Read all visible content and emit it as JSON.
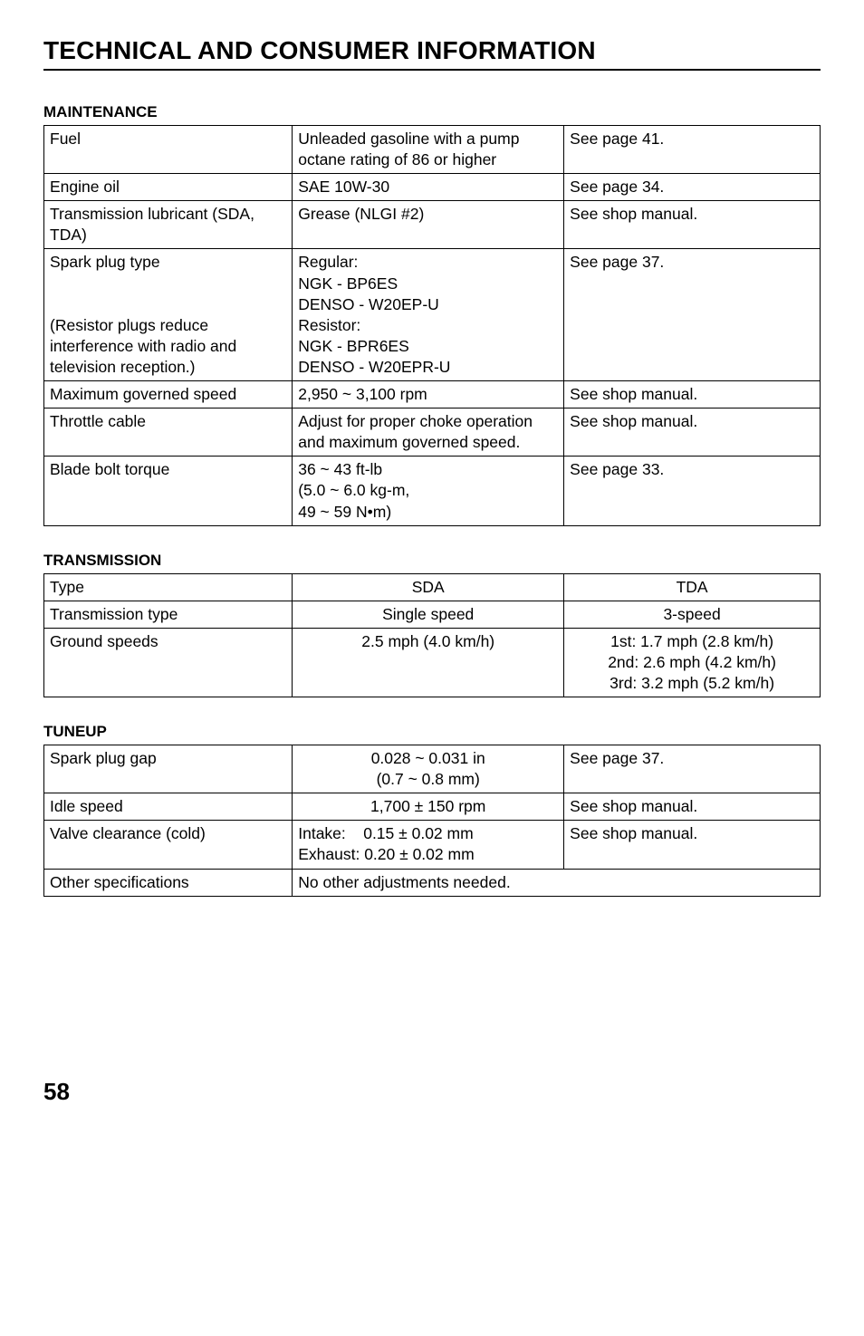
{
  "page": {
    "title": "TECHNICAL AND CONSUMER INFORMATION",
    "number": "58"
  },
  "maintenance": {
    "heading": "MAINTENANCE",
    "rows": [
      {
        "label": "Fuel",
        "spec": "Unleaded gasoline with a pump octane rating of 86 or higher",
        "ref": "See page 41."
      },
      {
        "label": "Engine oil",
        "spec": "SAE 10W-30",
        "ref": "See page 34."
      },
      {
        "label": "Transmission lubricant (SDA, TDA)",
        "spec": "Grease (NLGI #2)",
        "ref": "See shop manual."
      },
      {
        "label": "Spark plug type\n\n(Resistor plugs reduce interference with radio and television reception.)",
        "spec": "Regular:\nNGK - BP6ES\nDENSO - W20EP-U\nResistor:\nNGK - BPR6ES\nDENSO - W20EPR-U",
        "ref": "See page 37."
      },
      {
        "label": "Maximum governed speed",
        "spec": "2,950 ~ 3,100 rpm",
        "ref": "See shop manual."
      },
      {
        "label": "Throttle cable",
        "spec": "Adjust for proper choke operation and maximum governed speed.",
        "ref": "See shop manual."
      },
      {
        "label": "Blade bolt torque",
        "spec": "36 ~ 43 ft-lb\n(5.0 ~ 6.0 kg-m,\n49 ~ 59 N•m)",
        "ref": "See page 33."
      }
    ]
  },
  "transmission": {
    "heading": "TRANSMISSION",
    "rows": [
      {
        "label": "Type",
        "c2": "SDA",
        "c3": "TDA"
      },
      {
        "label": "Transmission type",
        "c2": "Single speed",
        "c3": "3-speed"
      },
      {
        "label": "Ground speeds",
        "c2": "2.5 mph (4.0 km/h)",
        "c3": "1st: 1.7 mph (2.8 km/h)\n2nd: 2.6 mph (4.2 km/h)\n3rd: 3.2 mph (5.2 km/h)"
      }
    ]
  },
  "tuneup": {
    "heading": "TUNEUP",
    "rows": [
      {
        "label": "Spark plug gap",
        "c2": "0.028 ~ 0.031 in\n(0.7 ~ 0.8 mm)",
        "c3": "See page 37."
      },
      {
        "label": "Idle speed",
        "c2": "1,700 ± 150 rpm",
        "c3": "See shop manual."
      },
      {
        "label": "Valve clearance (cold)",
        "c2": "Intake:    0.15 ± 0.02 mm\nExhaust: 0.20 ± 0.02 mm",
        "c3": "See shop manual."
      }
    ],
    "last": {
      "label": "Other specifications",
      "merged": "No other adjustments needed."
    }
  }
}
